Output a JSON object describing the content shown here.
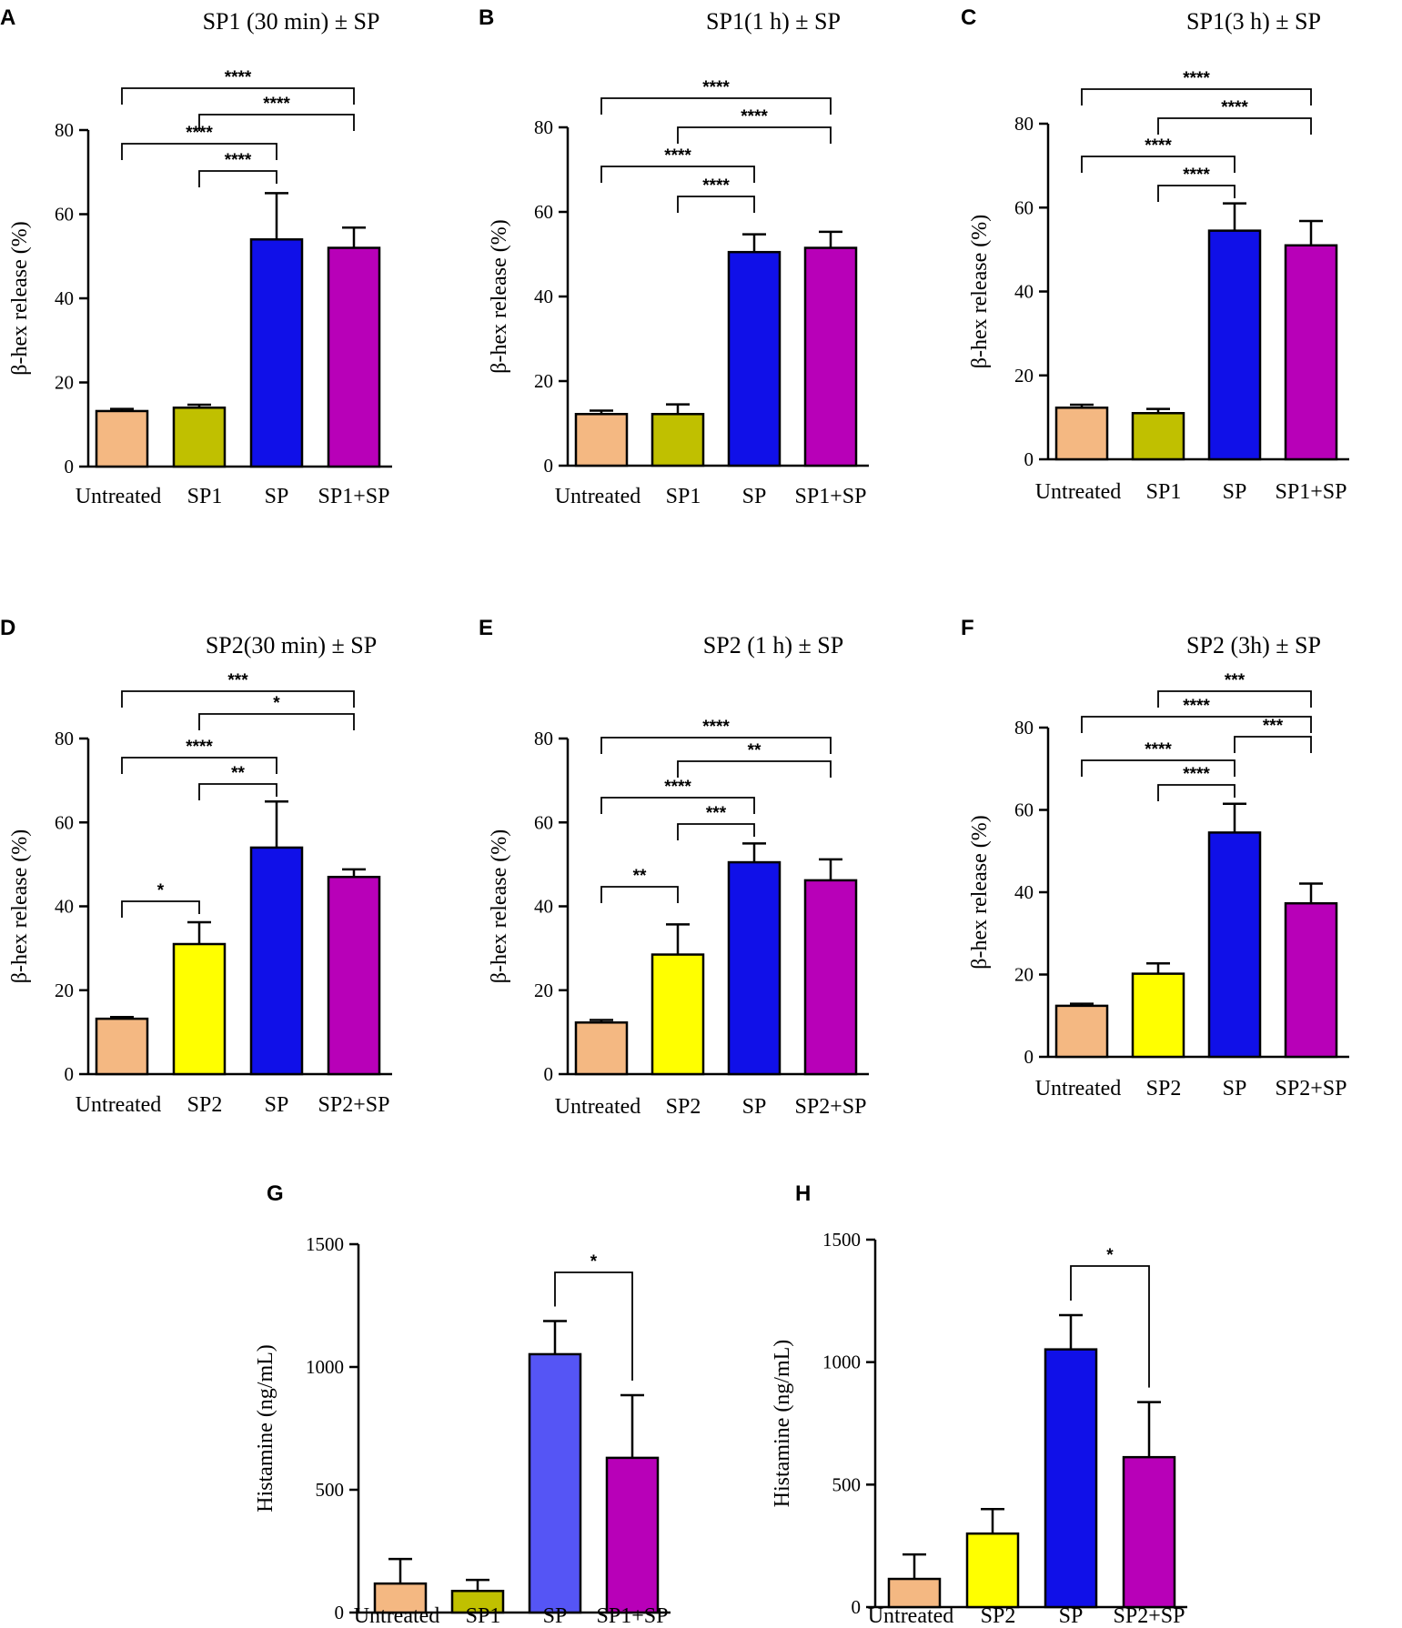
{
  "chart_data": [
    {
      "panel": "A",
      "type": "bar",
      "title": "SP1 (30 min) ± SP",
      "ylabel": "β-hex release (%)",
      "ylim": [
        0,
        80
      ],
      "yticks": [
        0,
        20,
        40,
        60,
        80
      ],
      "categories": [
        "Untreated",
        "SP1",
        "SP",
        "SP1+SP"
      ],
      "values": [
        13.2,
        14.0,
        54.0,
        52.0
      ],
      "errors": [
        0.5,
        0.7,
        11.0,
        4.8
      ],
      "colors": [
        "#f4b882",
        "#c0c000",
        "#1010e8",
        "#b800b8"
      ],
      "significance": [
        {
          "from": 0,
          "to": 3,
          "label": "****"
        },
        {
          "from": 1,
          "to": 3,
          "label": "****"
        },
        {
          "from": 0,
          "to": 2,
          "label": "****"
        },
        {
          "from": 1,
          "to": 2,
          "label": "****"
        }
      ]
    },
    {
      "panel": "B",
      "type": "bar",
      "title": "SP1(1 h) ± SP",
      "ylabel": "β-hex release (%)",
      "ylim": [
        0,
        80
      ],
      "yticks": [
        0,
        20,
        40,
        60,
        80
      ],
      "categories": [
        "Untreated",
        "SP1",
        "SP",
        "SP1+SP"
      ],
      "values": [
        12.2,
        12.2,
        50.5,
        51.5
      ],
      "errors": [
        0.8,
        2.3,
        4.2,
        3.8
      ],
      "colors": [
        "#f4b882",
        "#c0c000",
        "#1010e8",
        "#b800b8"
      ],
      "significance": [
        {
          "from": 0,
          "to": 3,
          "label": "****"
        },
        {
          "from": 1,
          "to": 3,
          "label": "****"
        },
        {
          "from": 0,
          "to": 2,
          "label": "****"
        },
        {
          "from": 1,
          "to": 2,
          "label": "****"
        }
      ]
    },
    {
      "panel": "C",
      "type": "bar",
      "title": "SP1(3 h) ± SP",
      "ylabel": "β-hex release (%)",
      "ylim": [
        0,
        80
      ],
      "yticks": [
        0,
        20,
        40,
        60,
        80
      ],
      "categories": [
        "Untreated",
        "SP1",
        "SP",
        "SP1+SP"
      ],
      "values": [
        12.3,
        11.0,
        54.5,
        51.0
      ],
      "errors": [
        0.7,
        1.0,
        6.5,
        5.8
      ],
      "colors": [
        "#f4b882",
        "#c0c000",
        "#1010e8",
        "#b800b8"
      ],
      "significance": [
        {
          "from": 0,
          "to": 3,
          "label": "****"
        },
        {
          "from": 1,
          "to": 3,
          "label": "****"
        },
        {
          "from": 0,
          "to": 2,
          "label": "****"
        },
        {
          "from": 1,
          "to": 2,
          "label": "****"
        }
      ]
    },
    {
      "panel": "D",
      "type": "bar",
      "title": "SP2(30 min) ± SP",
      "ylabel": "β-hex release (%)",
      "ylim": [
        0,
        80
      ],
      "yticks": [
        0,
        20,
        40,
        60,
        80
      ],
      "categories": [
        "Untreated",
        "SP2",
        "SP",
        "SP2+SP"
      ],
      "values": [
        13.2,
        31.0,
        54.0,
        47.0
      ],
      "errors": [
        0.4,
        5.2,
        11.0,
        1.8
      ],
      "colors": [
        "#f4b882",
        "#ffff00",
        "#1010e8",
        "#b800b8"
      ],
      "significance": [
        {
          "from": 0,
          "to": 3,
          "label": "***"
        },
        {
          "from": 1,
          "to": 3,
          "label": "*"
        },
        {
          "from": 0,
          "to": 2,
          "label": "****"
        },
        {
          "from": 1,
          "to": 2,
          "label": "**"
        },
        {
          "from": 0,
          "to": 1,
          "label": "*"
        }
      ]
    },
    {
      "panel": "E",
      "type": "bar",
      "title": "SP2 (1 h) ± SP",
      "ylabel": "β-hex release (%)",
      "ylim": [
        0,
        80
      ],
      "yticks": [
        0,
        20,
        40,
        60,
        80
      ],
      "categories": [
        "Untreated",
        "SP2",
        "SP",
        "SP2+SP"
      ],
      "values": [
        12.3,
        28.5,
        50.5,
        46.2
      ],
      "errors": [
        0.6,
        7.2,
        4.5,
        5.0
      ],
      "colors": [
        "#f4b882",
        "#ffff00",
        "#1010e8",
        "#b800b8"
      ],
      "significance": [
        {
          "from": 0,
          "to": 3,
          "label": "****"
        },
        {
          "from": 1,
          "to": 3,
          "label": "**"
        },
        {
          "from": 0,
          "to": 2,
          "label": "****"
        },
        {
          "from": 1,
          "to": 2,
          "label": "***"
        },
        {
          "from": 0,
          "to": 1,
          "label": "**"
        }
      ]
    },
    {
      "panel": "F",
      "type": "bar",
      "title": "SP2 (3h) ± SP",
      "ylabel": "β-hex release (%)",
      "ylim": [
        0,
        80
      ],
      "yticks": [
        0,
        20,
        40,
        60,
        80
      ],
      "categories": [
        "Untreated",
        "SP2",
        "SP",
        "SP2+SP"
      ],
      "values": [
        12.4,
        20.2,
        54.5,
        37.3
      ],
      "errors": [
        0.5,
        2.5,
        7.0,
        4.8
      ],
      "colors": [
        "#f4b882",
        "#ffff00",
        "#1010e8",
        "#b800b8"
      ],
      "significance": [
        {
          "from": 1,
          "to": 3,
          "label": "***"
        },
        {
          "from": 0,
          "to": 3,
          "label": "****"
        },
        {
          "from": 2,
          "to": 3,
          "label": "***"
        },
        {
          "from": 0,
          "to": 2,
          "label": "****"
        },
        {
          "from": 1,
          "to": 2,
          "label": "****"
        }
      ]
    },
    {
      "panel": "G",
      "type": "bar",
      "title": "",
      "ylabel": "Histamine (ng/mL)",
      "ylim": [
        0,
        1500
      ],
      "yticks": [
        0,
        500,
        1000,
        1500
      ],
      "categories": [
        "Untreated",
        "SP1",
        "SP",
        "SP1+SP"
      ],
      "values": [
        118,
        88,
        1052,
        630
      ],
      "errors": [
        100,
        45,
        135,
        255
      ],
      "colors": [
        "#f4b882",
        "#c0c000",
        "#5555f5",
        "#b800b8"
      ],
      "significance": [
        {
          "from": 2,
          "to": 3,
          "label": "*"
        }
      ]
    },
    {
      "panel": "H",
      "type": "bar",
      "title": "",
      "ylabel": "Histamine (ng/mL)",
      "ylim": [
        0,
        1500
      ],
      "yticks": [
        0,
        500,
        1000,
        1500
      ],
      "categories": [
        "Untreated",
        "SP2",
        "SP",
        "SP2+SP"
      ],
      "values": [
        115,
        300,
        1052,
        612
      ],
      "errors": [
        100,
        100,
        140,
        225
      ],
      "colors": [
        "#f4b882",
        "#ffff00",
        "#1010e8",
        "#b800b8"
      ],
      "significance": [
        {
          "from": 2,
          "to": 3,
          "label": "*"
        }
      ]
    }
  ]
}
